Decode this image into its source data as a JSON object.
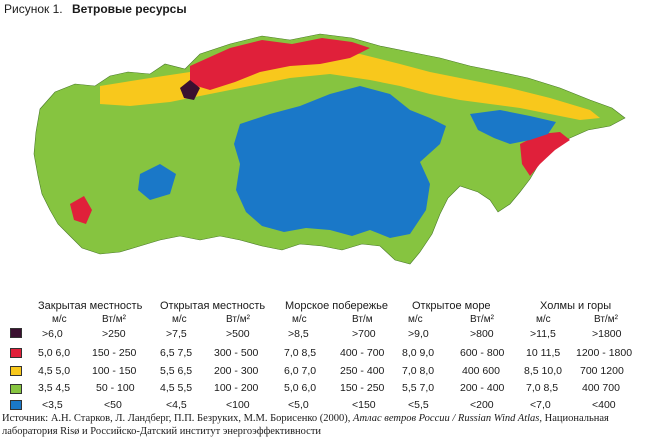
{
  "figure": {
    "label": "Рисунок 1.",
    "title": "Ветровые ресурсы"
  },
  "legend": {
    "colors": [
      "#3a1030",
      "#e0203a",
      "#f8c81c",
      "#86c440",
      "#1a78c8"
    ],
    "groups": [
      {
        "title": "Закрытая местность",
        "unit_speed": "м/с",
        "unit_power": "Вт/м²",
        "speeds": [
          ">6,0",
          "5,0  6,0",
          "4,5  5,0",
          "3,5  4,5",
          "<3,5"
        ],
        "powers": [
          ">250",
          "150 - 250",
          "100 - 150",
          "50 - 100",
          "<50"
        ]
      },
      {
        "title": "Открытая местность",
        "unit_speed": "м/с",
        "unit_power": "Вт/м²",
        "speeds": [
          ">7,5",
          "6,5  7,5",
          "5,5  6,5",
          "4,5  5,5",
          "<4,5"
        ],
        "powers": [
          ">500",
          "300 - 500",
          "200 - 300",
          "100 - 200",
          "<100"
        ]
      },
      {
        "title": "Морское побережье",
        "unit_speed": "м/с",
        "unit_power": "Вт/м",
        "speeds": [
          ">8,5",
          "7,0  8,5",
          "6,0  7,0",
          "5,0  6,0",
          "<5,0"
        ],
        "powers": [
          ">700",
          "400 - 700",
          "250 - 400",
          "150 - 250",
          "<150"
        ]
      },
      {
        "title": "Открытое море",
        "unit_speed": "м/с",
        "unit_power": "Вт/м²",
        "speeds": [
          ">9,0",
          "8,0  9,0",
          "7,0  8,0",
          "5,5  7,0",
          "<5,5"
        ],
        "powers": [
          ">800",
          "600 - 800",
          "400  600",
          "200 - 400",
          "<200"
        ]
      },
      {
        "title": "Холмы и горы",
        "unit_speed": "м/с",
        "unit_power": "Вт/м²",
        "speeds": [
          ">11,5",
          "10  11,5",
          "8,5  10,0",
          "7,0  8,5",
          "<7,0"
        ],
        "powers": [
          ">1800",
          "1200 - 1800",
          "700  1200",
          "400  700",
          "<400"
        ]
      }
    ]
  },
  "source": {
    "prefix": "Источник: А.Н. Старков, Л. Ландберг, П.П. Безруких, М.М. Борисенко (2000),",
    "book": "Атлас ветров России / Russian Wind Atlas,",
    "suffix": "Национальная лаборатория Risø и Российско-Датский институт энергоэффективности"
  }
}
